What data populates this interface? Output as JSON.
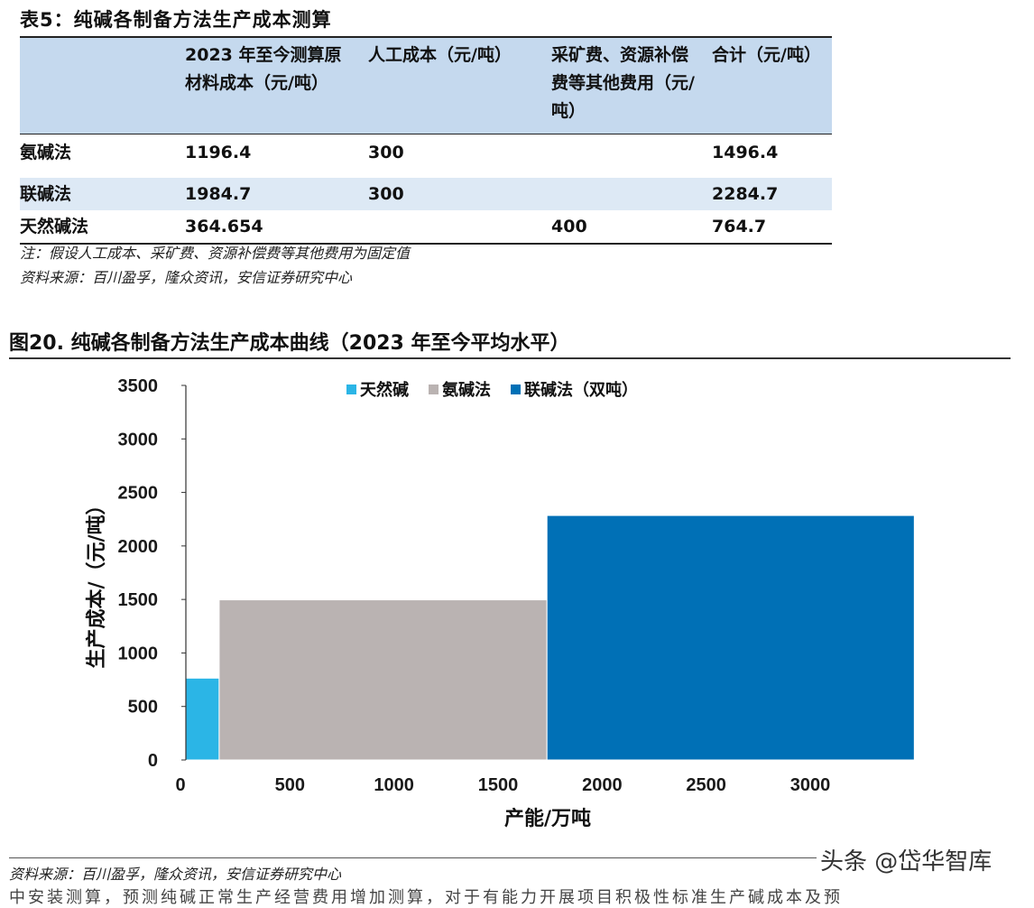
{
  "table": {
    "title": "表5：纯碱各制备方法生产成本测算",
    "headers": [
      "",
      "2023 年至今测算原材料成本（元/吨）",
      "人工成本（元/吨）",
      "采矿费、资源补偿费等其他费用（元/吨）",
      "合计（元/吨）"
    ],
    "rows": [
      {
        "method": "氨碱法",
        "material": "1196.4",
        "labor": "300",
        "other": "",
        "total": "1496.4"
      },
      {
        "method": "联碱法",
        "material": "1984.7",
        "labor": "300",
        "other": "",
        "total": "2284.7"
      },
      {
        "method": "天然碱法",
        "material": "364.654",
        "labor": "",
        "other": "400",
        "total": "764.7"
      }
    ],
    "note": "注：假设人工成本、采矿费、资源补偿费等其他费用为固定值",
    "source": "资料来源：百川盈孚，隆众资讯，安信证券研究中心"
  },
  "figure": {
    "title": "图20. 纯碱各制备方法生产成本曲线（2023 年至今平均水平）",
    "source": "资料来源：百川盈孚，隆众资讯，安信证券研究中心"
  },
  "watermark": "头条 @岱华智库",
  "cutoff_text": "中安装测算，预测纯碱正常生产经营费用增加测算，对于有能力开展项目积极性标准生产碱成本及预",
  "chart_data": {
    "type": "bar",
    "subtype": "variable-width step cost curve",
    "xlabel": "产能/万吨",
    "ylabel": "生产成本/（元/吨）",
    "xlim": [
      0,
      3500
    ],
    "ylim": [
      0,
      3500
    ],
    "xticks": [
      0,
      500,
      1000,
      1500,
      2000,
      2500,
      3000
    ],
    "yticks": [
      0,
      500,
      1000,
      1500,
      2000,
      2500,
      3000,
      3500
    ],
    "legend_position": "top",
    "grid": false,
    "series": [
      {
        "name": "天然碱",
        "color": "#2bb5e6",
        "x_start": 0,
        "x_end": 160,
        "value": 764.7
      },
      {
        "name": "氨碱法",
        "color": "#bab3b2",
        "x_start": 160,
        "x_end": 1735,
        "value": 1496.4
      },
      {
        "name": "联碱法（双吨）",
        "color": "#0070b6",
        "x_start": 1735,
        "x_end": 3500,
        "value": 2284.7
      }
    ]
  }
}
